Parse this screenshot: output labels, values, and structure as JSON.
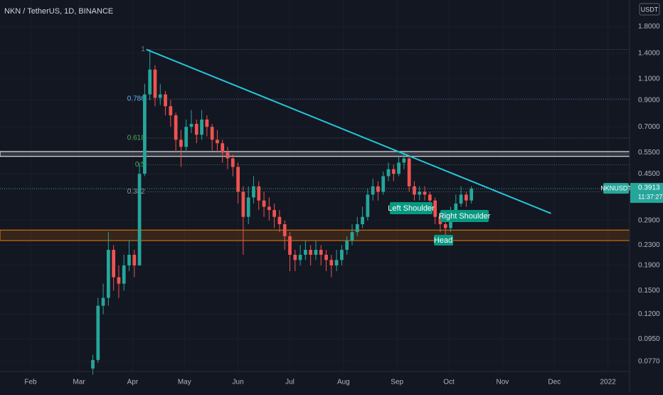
{
  "chart_data": {
    "type": "candlestick",
    "title": "NKN / TetherUS, 1D, BINANCE",
    "symbol": "NKNUSDT",
    "currency": "USDT",
    "countdown": "11:37:27",
    "last_price": 0.3913,
    "log_y": true,
    "grid": true,
    "up_color": "#26a69a",
    "down_color": "#ef5350",
    "xlim": [
      13.3,
      377.5
    ],
    "xticks": [
      {
        "value": 31,
        "label": "Feb"
      },
      {
        "value": 59,
        "label": "Mar"
      },
      {
        "value": 90,
        "label": "Apr"
      },
      {
        "value": 120,
        "label": "May"
      },
      {
        "value": 151,
        "label": "Jun"
      },
      {
        "value": 181,
        "label": "Jul"
      },
      {
        "value": 212,
        "label": "Aug"
      },
      {
        "value": 243,
        "label": "Sep"
      },
      {
        "value": 273,
        "label": "Oct"
      },
      {
        "value": 304,
        "label": "Nov"
      },
      {
        "value": 334,
        "label": "Dec"
      },
      {
        "value": 365,
        "label": "2022"
      }
    ],
    "ylim": [
      0.07,
      2.31
    ],
    "yticks": [
      {
        "value": 1.8,
        "label": "1.8000"
      },
      {
        "value": 1.4,
        "label": "1.4000"
      },
      {
        "value": 1.1,
        "label": "1.1000"
      },
      {
        "value": 0.9,
        "label": "0.9000"
      },
      {
        "value": 0.7,
        "label": "0.7000"
      },
      {
        "value": 0.55,
        "label": "0.5500"
      },
      {
        "value": 0.45,
        "label": "0.4500"
      },
      {
        "value": 0.29,
        "label": "0.2900"
      },
      {
        "value": 0.23,
        "label": "0.2300"
      },
      {
        "value": 0.19,
        "label": "0.1900"
      },
      {
        "value": 0.15,
        "label": "0.1500"
      },
      {
        "value": 0.12,
        "label": "0.1200"
      },
      {
        "value": 0.095,
        "label": "0.0950"
      },
      {
        "value": 0.077,
        "label": "0.0770"
      }
    ],
    "x": [
      67,
      70,
      73,
      76,
      79,
      82,
      85,
      88,
      91,
      94,
      97,
      100,
      103,
      106,
      109,
      112,
      115,
      118,
      121,
      124,
      127,
      130,
      133,
      136,
      139,
      142,
      145,
      148,
      151,
      154,
      157,
      160,
      163,
      166,
      169,
      172,
      175,
      178,
      181,
      184,
      187,
      190,
      193,
      196,
      199,
      202,
      205,
      208,
      211,
      214,
      217,
      220,
      223,
      226,
      229,
      232,
      235,
      238,
      241,
      244,
      247,
      250,
      253,
      256,
      259,
      262,
      265,
      268,
      271,
      274,
      277,
      280,
      283,
      286
    ],
    "open": [
      0.072,
      0.078,
      0.13,
      0.14,
      0.22,
      0.17,
      0.16,
      0.19,
      0.21,
      0.19,
      0.45,
      0.95,
      1.2,
      0.92,
      0.95,
      0.85,
      0.78,
      0.62,
      0.58,
      0.7,
      0.72,
      0.65,
      0.75,
      0.7,
      0.62,
      0.6,
      0.55,
      0.52,
      0.48,
      0.38,
      0.3,
      0.36,
      0.4,
      0.35,
      0.33,
      0.32,
      0.3,
      0.28,
      0.25,
      0.21,
      0.2,
      0.21,
      0.22,
      0.21,
      0.22,
      0.21,
      0.2,
      0.19,
      0.2,
      0.22,
      0.24,
      0.26,
      0.28,
      0.3,
      0.37,
      0.4,
      0.38,
      0.44,
      0.47,
      0.45,
      0.5,
      0.52,
      0.4,
      0.37,
      0.38,
      0.37,
      0.35,
      0.3,
      0.28,
      0.27,
      0.31,
      0.34,
      0.37,
      0.35
    ],
    "high": [
      0.082,
      0.14,
      0.16,
      0.26,
      0.23,
      0.19,
      0.21,
      0.24,
      0.22,
      0.5,
      1.05,
      1.45,
      1.25,
      1.05,
      0.98,
      0.9,
      0.8,
      0.68,
      0.75,
      0.82,
      0.75,
      0.82,
      0.78,
      0.72,
      0.68,
      0.62,
      0.58,
      0.54,
      0.5,
      0.4,
      0.4,
      0.44,
      0.42,
      0.38,
      0.36,
      0.34,
      0.32,
      0.29,
      0.26,
      0.22,
      0.23,
      0.24,
      0.23,
      0.24,
      0.23,
      0.22,
      0.21,
      0.22,
      0.23,
      0.25,
      0.28,
      0.3,
      0.33,
      0.39,
      0.43,
      0.42,
      0.46,
      0.5,
      0.49,
      0.53,
      0.55,
      0.53,
      0.42,
      0.4,
      0.4,
      0.38,
      0.36,
      0.31,
      0.29,
      0.33,
      0.37,
      0.4,
      0.38,
      0.4
    ],
    "low": [
      0.068,
      0.076,
      0.12,
      0.13,
      0.15,
      0.14,
      0.15,
      0.18,
      0.17,
      0.19,
      0.44,
      0.9,
      0.85,
      0.86,
      0.78,
      0.7,
      0.55,
      0.48,
      0.55,
      0.66,
      0.6,
      0.62,
      0.64,
      0.56,
      0.55,
      0.5,
      0.47,
      0.44,
      0.34,
      0.21,
      0.28,
      0.34,
      0.32,
      0.3,
      0.29,
      0.27,
      0.26,
      0.22,
      0.18,
      0.18,
      0.19,
      0.2,
      0.19,
      0.2,
      0.19,
      0.18,
      0.17,
      0.18,
      0.19,
      0.21,
      0.23,
      0.25,
      0.27,
      0.29,
      0.35,
      0.35,
      0.37,
      0.42,
      0.42,
      0.44,
      0.47,
      0.38,
      0.35,
      0.35,
      0.35,
      0.32,
      0.28,
      0.26,
      0.25,
      0.26,
      0.3,
      0.33,
      0.33,
      0.34
    ],
    "close": [
      0.078,
      0.13,
      0.14,
      0.22,
      0.17,
      0.16,
      0.19,
      0.21,
      0.19,
      0.45,
      0.95,
      1.2,
      0.92,
      0.95,
      0.85,
      0.78,
      0.62,
      0.58,
      0.7,
      0.72,
      0.65,
      0.75,
      0.7,
      0.62,
      0.6,
      0.55,
      0.52,
      0.48,
      0.38,
      0.3,
      0.36,
      0.4,
      0.35,
      0.33,
      0.32,
      0.3,
      0.28,
      0.25,
      0.21,
      0.2,
      0.21,
      0.22,
      0.21,
      0.22,
      0.21,
      0.2,
      0.19,
      0.2,
      0.22,
      0.24,
      0.26,
      0.28,
      0.3,
      0.37,
      0.4,
      0.38,
      0.44,
      0.47,
      0.45,
      0.5,
      0.52,
      0.4,
      0.37,
      0.38,
      0.37,
      0.35,
      0.3,
      0.28,
      0.27,
      0.31,
      0.34,
      0.37,
      0.35,
      0.3913
    ],
    "trendline": {
      "x": [
        98,
        332
      ],
      "values": [
        1.45,
        0.31
      ],
      "color": "#26c6da"
    },
    "fib_levels": [
      {
        "label": "1",
        "value": 1.45,
        "color": "#787b86"
      },
      {
        "label": "0.786",
        "value": 0.91,
        "color": "#64b5f6"
      },
      {
        "label": "0.618",
        "value": 0.63,
        "color": "#4caf50"
      },
      {
        "label": "0.5",
        "value": 0.49,
        "color": "#4caf50"
      },
      {
        "label": "0.382",
        "value": 0.38,
        "color": "#9598a1"
      }
    ],
    "zones": [
      {
        "low": 0.53,
        "high": 0.555,
        "color": "#ffffff"
      },
      {
        "low": 0.24,
        "high": 0.265,
        "color": "#f57c00"
      }
    ],
    "annotations": [
      "Left Shoulder",
      "Right Shoulder",
      "Head"
    ]
  }
}
